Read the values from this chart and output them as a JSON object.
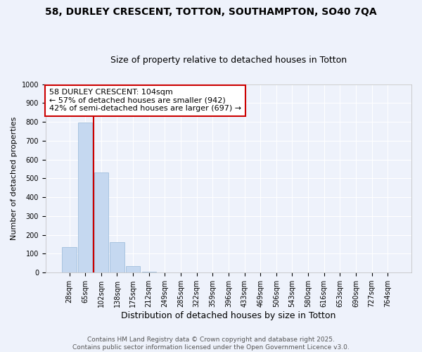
{
  "title1": "58, DURLEY CRESCENT, TOTTON, SOUTHAMPTON, SO40 7QA",
  "title2": "Size of property relative to detached houses in Totton",
  "xlabel": "Distribution of detached houses by size in Totton",
  "ylabel": "Number of detached properties",
  "bins": [
    "28sqm",
    "65sqm",
    "102sqm",
    "138sqm",
    "175sqm",
    "212sqm",
    "249sqm",
    "285sqm",
    "322sqm",
    "359sqm",
    "396sqm",
    "433sqm",
    "469sqm",
    "506sqm",
    "543sqm",
    "580sqm",
    "616sqm",
    "653sqm",
    "690sqm",
    "727sqm",
    "764sqm"
  ],
  "values": [
    135,
    795,
    530,
    160,
    35,
    5,
    2,
    1,
    0,
    0,
    0,
    0,
    0,
    0,
    0,
    0,
    0,
    0,
    0,
    0,
    0
  ],
  "bar_color": "#c5d8f0",
  "bar_edge_color": "#a0bedd",
  "red_line_x": 1.5,
  "red_line_color": "#cc0000",
  "annotation_text": "58 DURLEY CRESCENT: 104sqm\n← 57% of detached houses are smaller (942)\n42% of semi-detached houses are larger (697) →",
  "annotation_box_color": "#cc0000",
  "annotation_text_color": "black",
  "annotation_bg_color": "white",
  "ylim": [
    0,
    1000
  ],
  "yticks": [
    0,
    100,
    200,
    300,
    400,
    500,
    600,
    700,
    800,
    900,
    1000
  ],
  "footer_text": "Contains HM Land Registry data © Crown copyright and database right 2025.\nContains public sector information licensed under the Open Government Licence v3.0.",
  "background_color": "#eef2fb",
  "grid_color": "#ffffff",
  "title1_fontsize": 10,
  "title2_fontsize": 9,
  "xlabel_fontsize": 9,
  "ylabel_fontsize": 8,
  "tick_fontsize": 7,
  "annotation_fontsize": 8,
  "footer_fontsize": 6.5
}
